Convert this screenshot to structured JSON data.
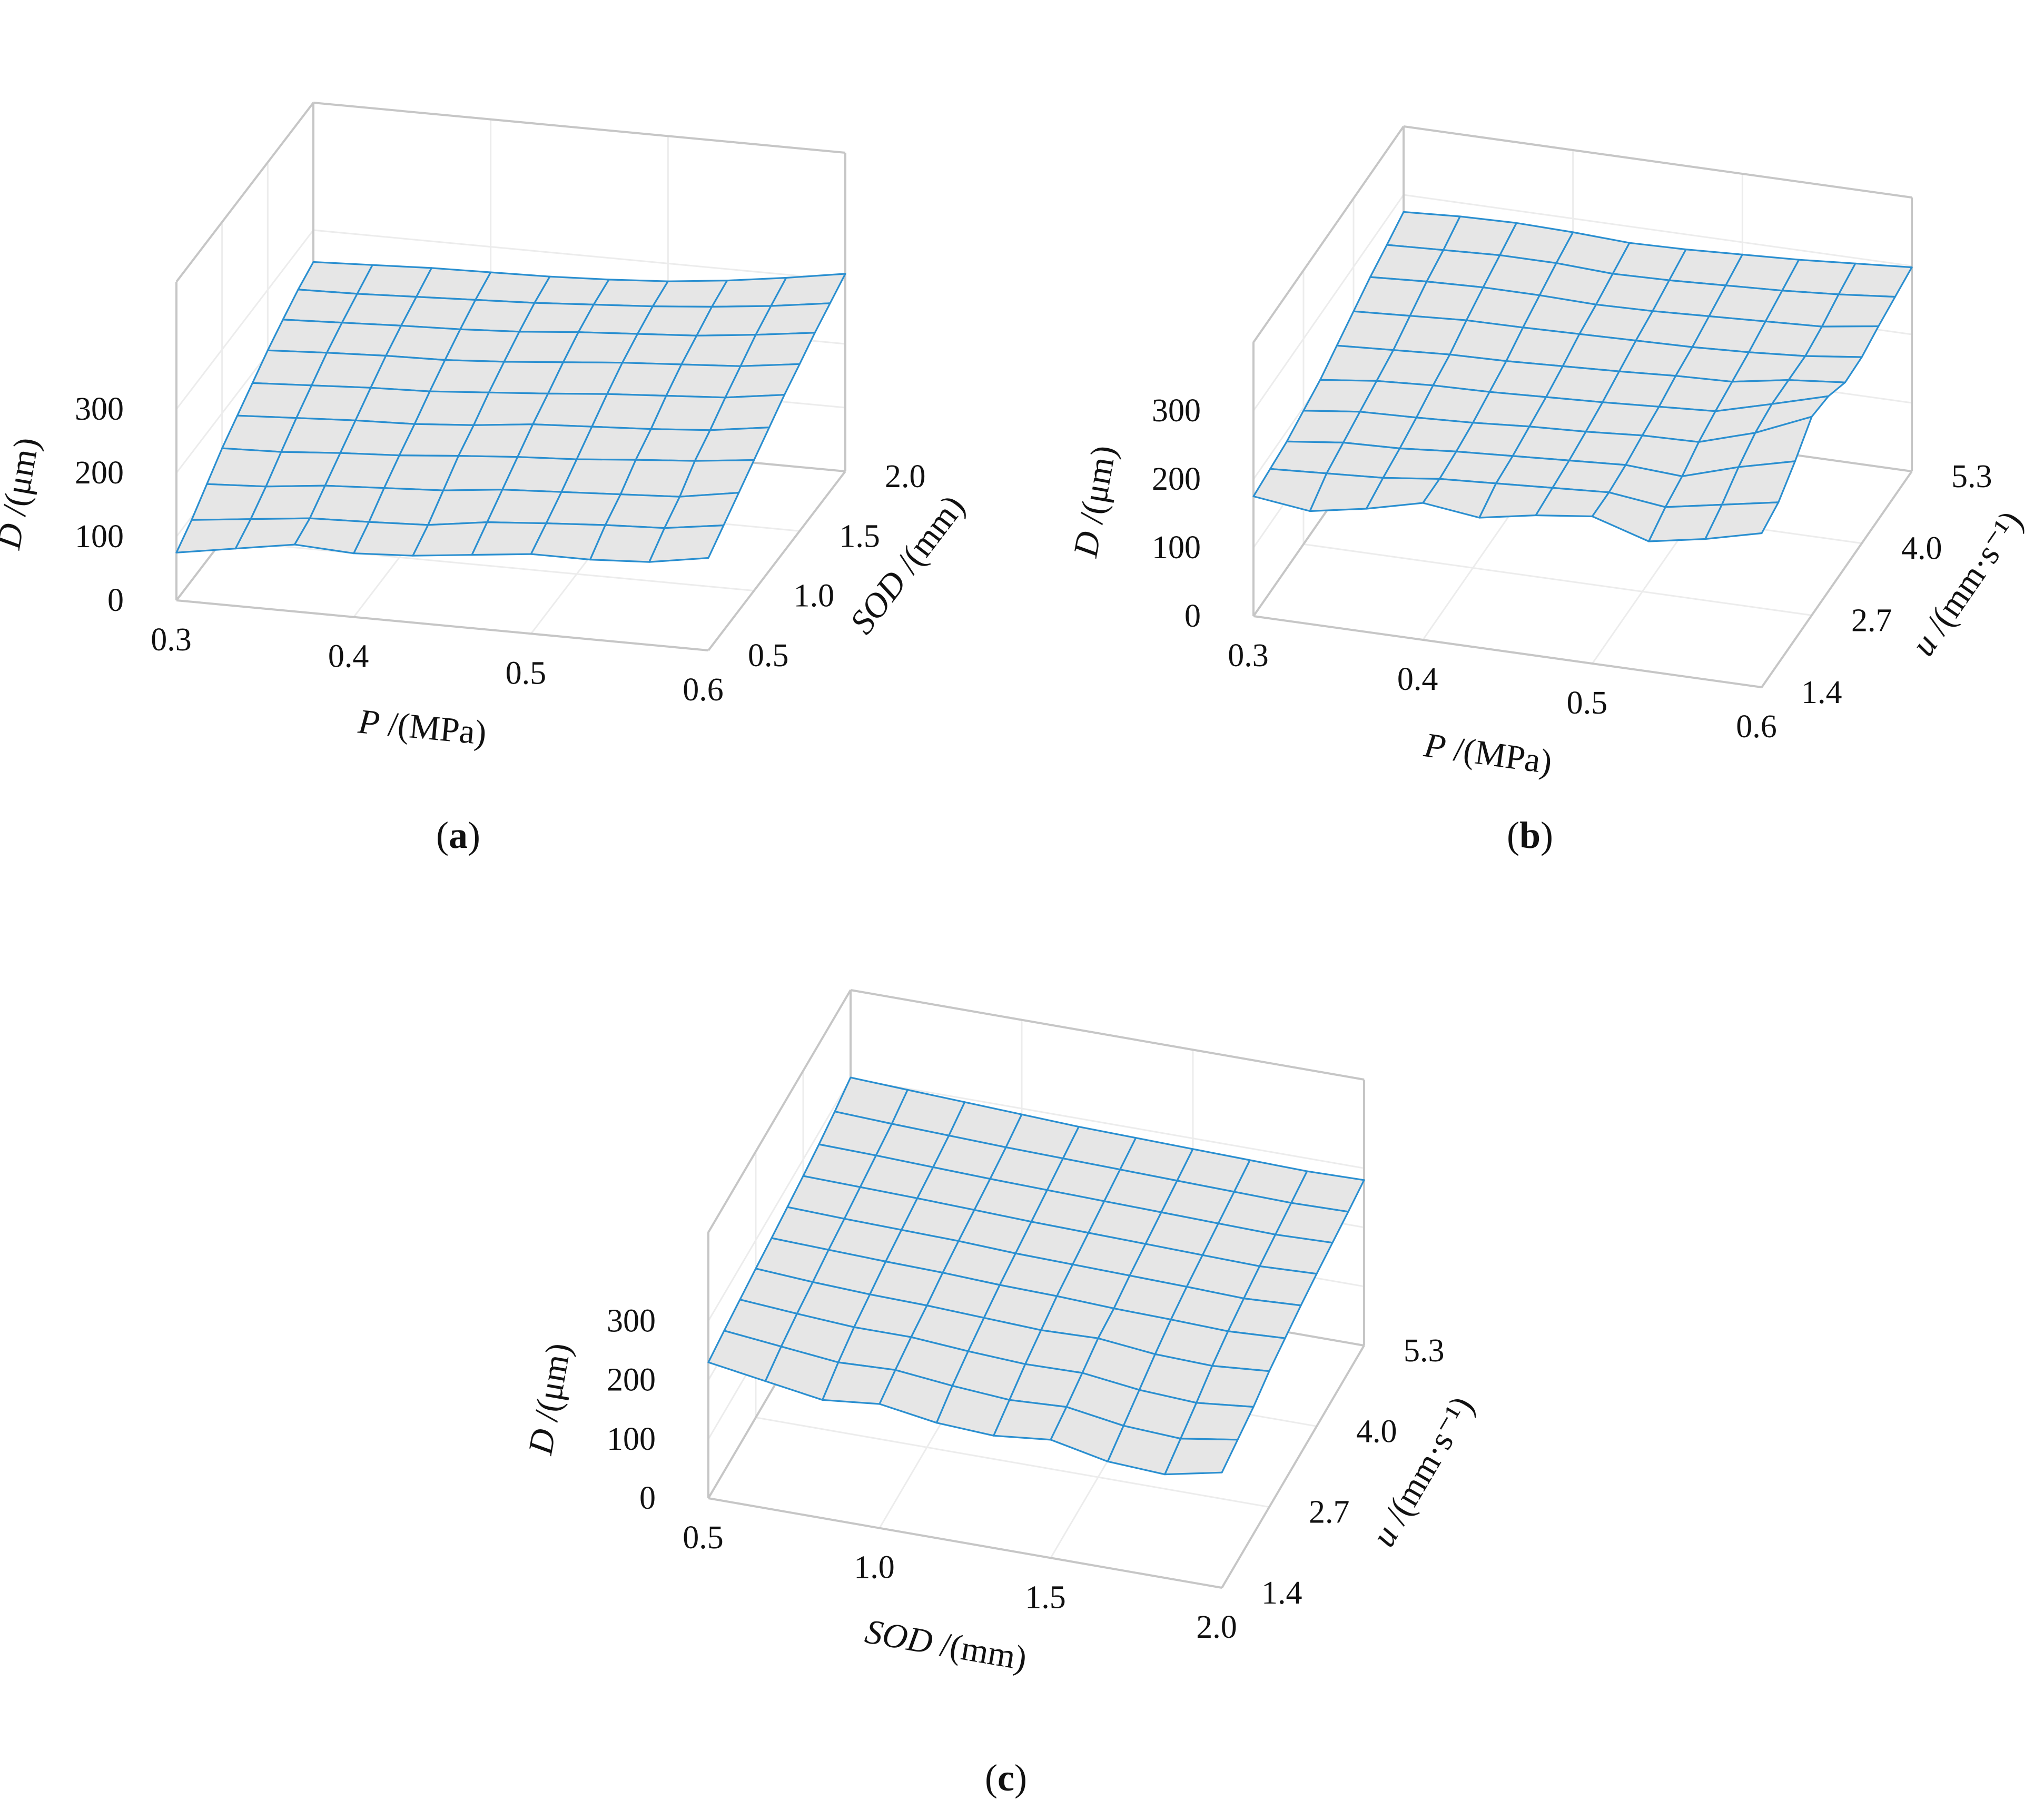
{
  "figure": {
    "captions": [
      "(a)",
      "(b)",
      "(c)"
    ]
  },
  "colors": {
    "mesh_line": "#2a8fd0",
    "surface_fill": "#e6e6e6",
    "box_line": "#c6c6c6",
    "grid_line": "#ececec",
    "text": "#111111"
  },
  "chart_data": [
    {
      "type": "surface",
      "panel": "a",
      "caption": "(a)",
      "x": {
        "var": "P",
        "unit": " /(MPa)",
        "italic": true,
        "ticks": [
          "0.3",
          "0.4",
          "0.5",
          "0.6"
        ],
        "range": [
          0.3,
          0.6
        ]
      },
      "y": {
        "var": "SOD",
        "unit": " /(mm)",
        "italic": true,
        "ticks": [
          "0.5",
          "1.0",
          "1.5",
          "2.0"
        ],
        "range": [
          0.5,
          2.0
        ]
      },
      "z": {
        "var": "D",
        "unit": " /(μm)",
        "italic": true,
        "ticks": [
          "0",
          "100",
          "200",
          "300"
        ],
        "range": [
          0,
          300
        ]
      },
      "grid": true,
      "z_values": [
        [
          75,
          90,
          105,
          100,
          105,
          115,
          125,
          125,
          130,
          145
        ],
        [
          95,
          105,
          115,
          118,
          122,
          135,
          142,
          148,
          152,
          165
        ],
        [
          120,
          125,
          135,
          140,
          145,
          155,
          160,
          165,
          170,
          185
        ],
        [
          145,
          148,
          155,
          160,
          168,
          175,
          180,
          188,
          195,
          205
        ],
        [
          165,
          170,
          175,
          178,
          185,
          195,
          200,
          205,
          212,
          225
        ],
        [
          185,
          190,
          195,
          198,
          205,
          212,
          220,
          226,
          232,
          245
        ],
        [
          205,
          210,
          214,
          216,
          222,
          230,
          238,
          244,
          250,
          262
        ],
        [
          222,
          226,
          230,
          233,
          238,
          246,
          252,
          258,
          268,
          280
        ],
        [
          238,
          240,
          244,
          248,
          252,
          258,
          264,
          272,
          282,
          295
        ],
        [
          250,
          254,
          258,
          260,
          262,
          266,
          272,
          282,
          295,
          310
        ]
      ]
    },
    {
      "type": "surface",
      "panel": "b",
      "caption": "(b)",
      "x": {
        "var": "P",
        "unit": " /(MPa)",
        "italic": true,
        "ticks": [
          "0.3",
          "0.4",
          "0.5",
          "0.6"
        ],
        "range": [
          0.3,
          0.6
        ]
      },
      "y": {
        "var": "u",
        "unit": " /(mm·s⁻¹)",
        "italic": true,
        "ticks": [
          "1.4",
          "2.7",
          "4.0",
          "5.3"
        ],
        "range": [
          1.4,
          5.3
        ]
      },
      "z": {
        "var": "D",
        "unit": " /(μm)",
        "italic": true,
        "ticks": [
          "0",
          "100",
          "200",
          "300"
        ],
        "range": [
          0,
          300
        ]
      },
      "grid": true,
      "z_values": [
        [
          175,
          165,
          180,
          200,
          190,
          205,
          215,
          190,
          205,
          225
        ],
        [
          180,
          185,
          190,
          200,
          205,
          210,
          215,
          205,
          220,
          235
        ],
        [
          185,
          195,
          198,
          205,
          210,
          215,
          220,
          215,
          240,
          260
        ],
        [
          195,
          205,
          208,
          212,
          218,
          222,
          228,
          230,
          255,
          290
        ],
        [
          205,
          215,
          220,
          222,
          226,
          230,
          235,
          240,
          262,
          285
        ],
        [
          220,
          225,
          230,
          232,
          236,
          240,
          245,
          248,
          262,
          270
        ],
        [
          235,
          240,
          245,
          246,
          248,
          250,
          252,
          256,
          262,
          272
        ],
        [
          250,
          255,
          258,
          258,
          256,
          258,
          262,
          266,
          270,
          282
        ],
        [
          262,
          266,
          270,
          270,
          266,
          268,
          272,
          276,
          282,
          290
        ],
        [
          275,
          280,
          282,
          280,
          276,
          278,
          282,
          286,
          292,
          298
        ]
      ]
    },
    {
      "type": "surface",
      "panel": "c",
      "caption": "(c)",
      "x": {
        "var": "SOD",
        "unit": " /(mm)",
        "italic": true,
        "ticks": [
          "0.5",
          "1.0",
          "1.5",
          "2.0"
        ],
        "range": [
          0.5,
          2.0
        ]
      },
      "y": {
        "var": "u",
        "unit": " /(mm·s⁻¹)",
        "italic": true,
        "ticks": [
          "1.4",
          "2.7",
          "4.0",
          "5.3"
        ],
        "range": [
          1.4,
          5.3
        ]
      },
      "z": {
        "var": "D",
        "unit": " /(μm)",
        "italic": true,
        "ticks": [
          "0",
          "100",
          "200",
          "300"
        ],
        "range": [
          0,
          300
        ]
      },
      "grid": true,
      "z_values": [
        [
          230,
          215,
          200,
          210,
          195,
          190,
          200,
          180,
          175,
          195
        ],
        [
          238,
          228,
          218,
          222,
          212,
          205,
          210,
          195,
          190,
          205
        ],
        [
          245,
          238,
          232,
          232,
          225,
          220,
          222,
          210,
          205,
          215
        ],
        [
          252,
          246,
          242,
          240,
          236,
          232,
          235,
          225,
          222,
          230
        ],
        [
          258,
          255,
          252,
          250,
          246,
          244,
          240,
          238,
          235,
          240
        ],
        [
          265,
          262,
          260,
          258,
          254,
          252,
          250,
          248,
          245,
          250
        ],
        [
          272,
          270,
          268,
          265,
          262,
          260,
          258,
          256,
          254,
          258
        ],
        [
          280,
          278,
          275,
          272,
          270,
          268,
          266,
          264,
          262,
          265
        ],
        [
          290,
          286,
          283,
          280,
          278,
          276,
          274,
          272,
          270,
          272
        ],
        [
          302,
          298,
          294,
          290,
          286,
          284,
          282,
          280,
          278,
          280
        ]
      ]
    }
  ]
}
